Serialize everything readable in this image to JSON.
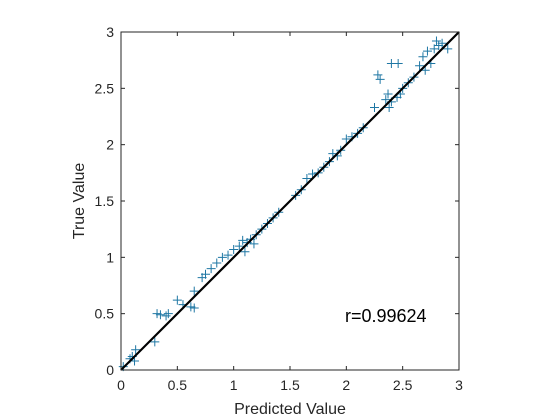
{
  "chart_data": {
    "type": "scatter",
    "title": "",
    "xlabel": "Predicted Value",
    "ylabel": "True Value",
    "xlim": [
      0,
      3
    ],
    "ylim": [
      0,
      3
    ],
    "xticks": [
      0,
      0.5,
      1,
      1.5,
      2,
      2.5,
      3
    ],
    "yticks": [
      0,
      0.5,
      1,
      1.5,
      2,
      2.5,
      3
    ],
    "xtick_labels": [
      "0",
      "0.5",
      "1",
      "1.5",
      "2",
      "2.5",
      "3"
    ],
    "ytick_labels": [
      "0",
      "0.5",
      "1",
      "1.5",
      "2",
      "2.5",
      "3"
    ],
    "grid": false,
    "marker": "+",
    "marker_color": "#1f77a4",
    "fit_line": {
      "x": [
        0,
        3
      ],
      "y": [
        0,
        3
      ],
      "color": "#000000"
    },
    "annotation": "r=0.99624",
    "points": [
      [
        0.02,
        0.03
      ],
      [
        0.08,
        0.1
      ],
      [
        0.1,
        0.12
      ],
      [
        0.13,
        0.18
      ],
      [
        0.12,
        0.08
      ],
      [
        0.3,
        0.25
      ],
      [
        0.32,
        0.5
      ],
      [
        0.35,
        0.49
      ],
      [
        0.4,
        0.48
      ],
      [
        0.42,
        0.5
      ],
      [
        0.5,
        0.62
      ],
      [
        0.55,
        0.58
      ],
      [
        0.62,
        0.56
      ],
      [
        0.65,
        0.55
      ],
      [
        0.65,
        0.7
      ],
      [
        0.72,
        0.82
      ],
      [
        0.75,
        0.85
      ],
      [
        0.8,
        0.9
      ],
      [
        0.85,
        0.95
      ],
      [
        0.9,
        1.0
      ],
      [
        0.95,
        1.02
      ],
      [
        1.0,
        1.07
      ],
      [
        1.05,
        1.1
      ],
      [
        1.08,
        1.15
      ],
      [
        1.1,
        1.05
      ],
      [
        1.12,
        1.13
      ],
      [
        1.15,
        1.16
      ],
      [
        1.18,
        1.12
      ],
      [
        1.2,
        1.2
      ],
      [
        1.25,
        1.25
      ],
      [
        1.3,
        1.3
      ],
      [
        1.35,
        1.35
      ],
      [
        1.4,
        1.4
      ],
      [
        1.55,
        1.55
      ],
      [
        1.6,
        1.6
      ],
      [
        1.65,
        1.7
      ],
      [
        1.7,
        1.74
      ],
      [
        1.75,
        1.75
      ],
      [
        1.8,
        1.8
      ],
      [
        1.85,
        1.85
      ],
      [
        1.88,
        1.92
      ],
      [
        1.92,
        1.9
      ],
      [
        1.95,
        1.95
      ],
      [
        2.0,
        2.05
      ],
      [
        2.05,
        2.07
      ],
      [
        2.1,
        2.1
      ],
      [
        2.15,
        2.15
      ],
      [
        2.25,
        2.33
      ],
      [
        2.28,
        2.62
      ],
      [
        2.3,
        2.58
      ],
      [
        2.35,
        2.4
      ],
      [
        2.37,
        2.45
      ],
      [
        2.38,
        2.33
      ],
      [
        2.4,
        2.38
      ],
      [
        2.4,
        2.72
      ],
      [
        2.45,
        2.42
      ],
      [
        2.46,
        2.72
      ],
      [
        2.48,
        2.45
      ],
      [
        2.5,
        2.5
      ],
      [
        2.55,
        2.55
      ],
      [
        2.6,
        2.6
      ],
      [
        2.65,
        2.7
      ],
      [
        2.68,
        2.78
      ],
      [
        2.7,
        2.66
      ],
      [
        2.72,
        2.83
      ],
      [
        2.75,
        2.72
      ],
      [
        2.78,
        2.85
      ],
      [
        2.8,
        2.92
      ],
      [
        2.82,
        2.88
      ],
      [
        2.85,
        2.9
      ],
      [
        2.9,
        2.85
      ]
    ]
  }
}
